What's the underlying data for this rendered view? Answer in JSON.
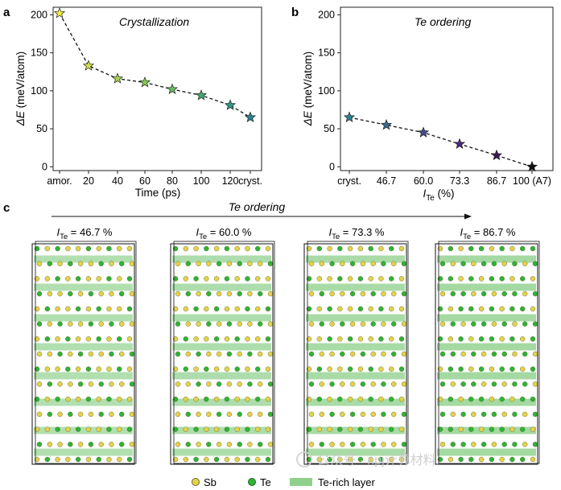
{
  "panels": {
    "a": "a",
    "b": "b",
    "c": "c"
  },
  "chart_data": [
    {
      "type": "line",
      "panel": "a",
      "title": "Crystallization",
      "xlabel": "Time (ps)",
      "ylabel": "(meV/atom)",
      "ylabel_symbol": "ΔE",
      "categories": [
        "amor.",
        "20",
        "40",
        "60",
        "80",
        "100",
        "120",
        "cryst."
      ],
      "values": [
        202,
        133,
        116,
        111,
        102,
        94,
        81,
        65
      ],
      "point_colors": [
        "#f4ee44",
        "#cfe04a",
        "#a8d24c",
        "#86c852",
        "#62bd5e",
        "#40ad72",
        "#2e9a86",
        "#2a8492"
      ],
      "ylim": [
        -5,
        210
      ],
      "yticks": [
        0,
        50,
        100,
        150,
        200
      ],
      "ytick_labels": [
        "0",
        "50",
        "100",
        "150",
        "200"
      ]
    },
    {
      "type": "line",
      "panel": "b",
      "title": "Te ordering",
      "xlabel_symbol": "I",
      "xlabel_sub": "Te",
      "xlabel_unit": " (%)",
      "ylabel": "(meV/atom)",
      "ylabel_symbol": "ΔE",
      "categories": [
        "cryst.",
        "46.7",
        "60.0",
        "73.3",
        "86.7",
        "100 (A7)"
      ],
      "values": [
        65,
        55,
        45,
        30,
        15,
        0
      ],
      "point_colors": [
        "#2a8492",
        "#3a6a8e",
        "#434b8a",
        "#452e76",
        "#3b1a52",
        "#111111"
      ],
      "ylim": [
        -5,
        210
      ],
      "yticks": [
        0,
        50,
        100,
        150,
        200
      ],
      "ytick_labels": [
        "0",
        "50",
        "100",
        "150",
        "200"
      ]
    }
  ],
  "panel_c": {
    "arrow_label": "Te ordering",
    "structures": [
      {
        "symbol": "I",
        "sub": "Te",
        "value": " = 46.7 %",
        "te_level": 0.467
      },
      {
        "symbol": "I",
        "sub": "Te",
        "value": " = 60.0 %",
        "te_level": 0.6
      },
      {
        "symbol": "I",
        "sub": "Te",
        "value": " = 73.3 %",
        "te_level": 0.733
      },
      {
        "symbol": "I",
        "sub": "Te",
        "value": " = 86.7 %",
        "te_level": 0.867
      }
    ],
    "legend": {
      "sb": "Sb",
      "te": "Te",
      "layer": "Te-rich layer"
    },
    "colors": {
      "sb": "#e3d24a",
      "te": "#2fb336",
      "layer": "#8fd08d"
    }
  },
  "watermark": "公众号 · npj计算材料"
}
